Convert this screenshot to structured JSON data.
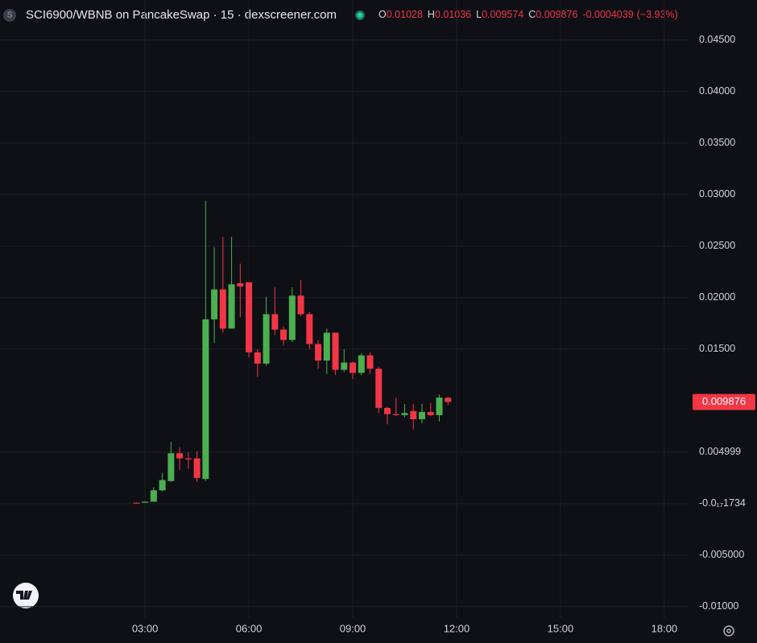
{
  "chart_data": {
    "type": "candlestick",
    "title": "SCI6900/WBNB on PancakeSwap · 15 · dexscreener.com",
    "logo": "S",
    "header": {
      "open_key": "O",
      "high_key": "H",
      "low_key": "L",
      "close_key": "C",
      "change": -0.0004039,
      "change_pct_label": "(−3.93%)"
    },
    "up_color": "#4caf50",
    "down_color": "#f23645",
    "grid": true,
    "xlim": [
      -1.19,
      18.7
    ],
    "xticks": [
      {
        "value": 3,
        "label": "03:00"
      },
      {
        "value": 6,
        "label": "06:00"
      },
      {
        "value": 9,
        "label": "09:00"
      },
      {
        "value": 12,
        "label": "12:00"
      },
      {
        "value": 15,
        "label": "15:00"
      },
      {
        "value": 18,
        "label": "18:00"
      }
    ],
    "ylim": [
      -0.0111,
      0.0489
    ],
    "yticks": [
      {
        "value": 0.045,
        "label": "0.04500"
      },
      {
        "value": 0.04,
        "label": "0.04000"
      },
      {
        "value": 0.035,
        "label": "0.03500"
      },
      {
        "value": 0.03,
        "label": "0.03000"
      },
      {
        "value": 0.025,
        "label": "0.02500"
      },
      {
        "value": 0.02,
        "label": "0.02000"
      },
      {
        "value": 0.015,
        "label": "0.01500"
      },
      0.004999,
      {
        "value": 0,
        "label": "-0.0₁₇1734"
      },
      {
        "value": -0.005,
        "label": "-0.005000"
      },
      {
        "value": -0.01,
        "label": "-0.01000"
      }
    ],
    "x": [
      2.75,
      3,
      3.25,
      3.5,
      3.75,
      4,
      4.25,
      4.5,
      4.75,
      5,
      5.25,
      5.5,
      5.75,
      6,
      6.25,
      6.5,
      6.75,
      7,
      7.25,
      7.5,
      7.75,
      8,
      8.25,
      8.5,
      8.75,
      9,
      9.25,
      9.5,
      9.75,
      10,
      10.25,
      10.5,
      10.75,
      11,
      11.25,
      11.5,
      11.75
    ],
    "open": [
      0.0001,
      0.0001,
      0.0002,
      0.0013,
      0.0022,
      0.0049,
      0.0044,
      0.0044,
      0.0024,
      0.0179,
      0.0208,
      0.017,
      0.0214,
      0.0215,
      0.0147,
      0.0136,
      0.0184,
      0.0169,
      0.0159,
      0.0202,
      0.0184,
      0.0155,
      0.0139,
      0.0166,
      0.013,
      0.0137,
      0.0127,
      0.0144,
      0.0131,
      0.0093,
      0.0087,
      0.0086,
      0.009,
      0.0082,
      0.0089,
      0.0086,
      0.01028
    ],
    "high": [
      0.00012,
      0.0002,
      0.0016,
      0.003,
      0.006,
      0.0055,
      0.005,
      0.0051,
      0.0294,
      0.0249,
      0.0259,
      0.0259,
      0.0233,
      0.0215,
      0.015,
      0.0201,
      0.021,
      0.0172,
      0.021,
      0.0217,
      0.0186,
      0.0159,
      0.017,
      0.0166,
      0.015,
      0.0138,
      0.0146,
      0.0147,
      0.0133,
      0.0094,
      0.0103,
      0.0097,
      0.0097,
      0.0097,
      0.0098,
      0.0106,
      0.01036
    ],
    "low": [
      0,
      0.0001,
      0.0002,
      0.0012,
      0.0021,
      0.0033,
      0.0034,
      0.0021,
      0.0022,
      0.0156,
      0.0166,
      0.017,
      0.0181,
      0.0142,
      0.0123,
      0.0134,
      0.0164,
      0.0154,
      0.0157,
      0.0182,
      0.015,
      0.0131,
      0.0126,
      0.0125,
      0.0128,
      0.0121,
      0.0125,
      0.0126,
      0.0088,
      0.0077,
      0.0085,
      0.0084,
      0.0072,
      0.0078,
      0.0085,
      0.008,
      0.009574
    ],
    "close": [
      8e-05,
      0.0002,
      0.0013,
      0.0023,
      0.0049,
      0.0044,
      0.0043,
      0.0025,
      0.0179,
      0.0208,
      0.017,
      0.0213,
      0.0211,
      0.0147,
      0.0136,
      0.0184,
      0.0169,
      0.0159,
      0.0202,
      0.0184,
      0.0155,
      0.0139,
      0.0166,
      0.013,
      0.0137,
      0.0127,
      0.0144,
      0.0131,
      0.0093,
      0.0087,
      0.0086,
      0.0088,
      0.0082,
      0.0089,
      0.0086,
      0.0103,
      0.009876
    ]
  }
}
